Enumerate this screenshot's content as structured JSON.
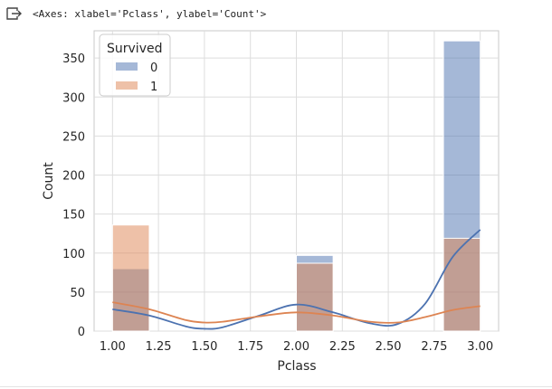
{
  "output": {
    "icon": "output-arrow-icon",
    "text": "<Axes: xlabel='Pclass', ylabel='Count'>"
  },
  "chart_data": {
    "type": "histogram",
    "xlabel": "Pclass",
    "ylabel": "Count",
    "xlim": [
      0.9,
      3.1
    ],
    "ylim": [
      0,
      385
    ],
    "xticks": [
      "1.00",
      "1.25",
      "1.50",
      "1.75",
      "2.00",
      "2.25",
      "2.50",
      "2.75",
      "3.00"
    ],
    "xtick_values": [
      1.0,
      1.25,
      1.5,
      1.75,
      2.0,
      2.25,
      2.5,
      2.75,
      3.0
    ],
    "yticks": [
      "0",
      "50",
      "100",
      "150",
      "200",
      "250",
      "300",
      "350"
    ],
    "ytick_values": [
      0,
      50,
      100,
      150,
      200,
      250,
      300,
      350
    ],
    "grid": true,
    "legend": {
      "title": "Survived",
      "placement": "top-left"
    },
    "bin_edges": [
      1.0,
      1.2,
      1.4,
      1.6,
      1.8,
      2.0,
      2.2,
      2.4,
      2.6,
      2.8,
      3.0
    ],
    "series": [
      {
        "name": "0",
        "color": "#4c72b0",
        "values": [
          80,
          0,
          0,
          0,
          0,
          97,
          0,
          0,
          0,
          372
        ],
        "kde": [
          [
            1.0,
            28
          ],
          [
            1.2,
            20
          ],
          [
            1.4,
            6
          ],
          [
            1.5,
            3
          ],
          [
            1.6,
            5
          ],
          [
            1.8,
            20
          ],
          [
            2.0,
            34
          ],
          [
            2.2,
            24
          ],
          [
            2.4,
            10
          ],
          [
            2.55,
            9
          ],
          [
            2.7,
            35
          ],
          [
            2.85,
            95
          ],
          [
            3.0,
            130
          ]
        ]
      },
      {
        "name": "1",
        "color": "#dd8452",
        "values": [
          136,
          0,
          0,
          0,
          0,
          87,
          0,
          0,
          0,
          119
        ],
        "kde": [
          [
            1.0,
            37
          ],
          [
            1.2,
            28
          ],
          [
            1.4,
            14
          ],
          [
            1.5,
            11
          ],
          [
            1.6,
            12
          ],
          [
            1.8,
            19
          ],
          [
            2.0,
            24
          ],
          [
            2.2,
            20
          ],
          [
            2.4,
            12
          ],
          [
            2.55,
            11
          ],
          [
            2.7,
            18
          ],
          [
            2.85,
            27
          ],
          [
            3.0,
            32
          ]
        ]
      }
    ]
  }
}
